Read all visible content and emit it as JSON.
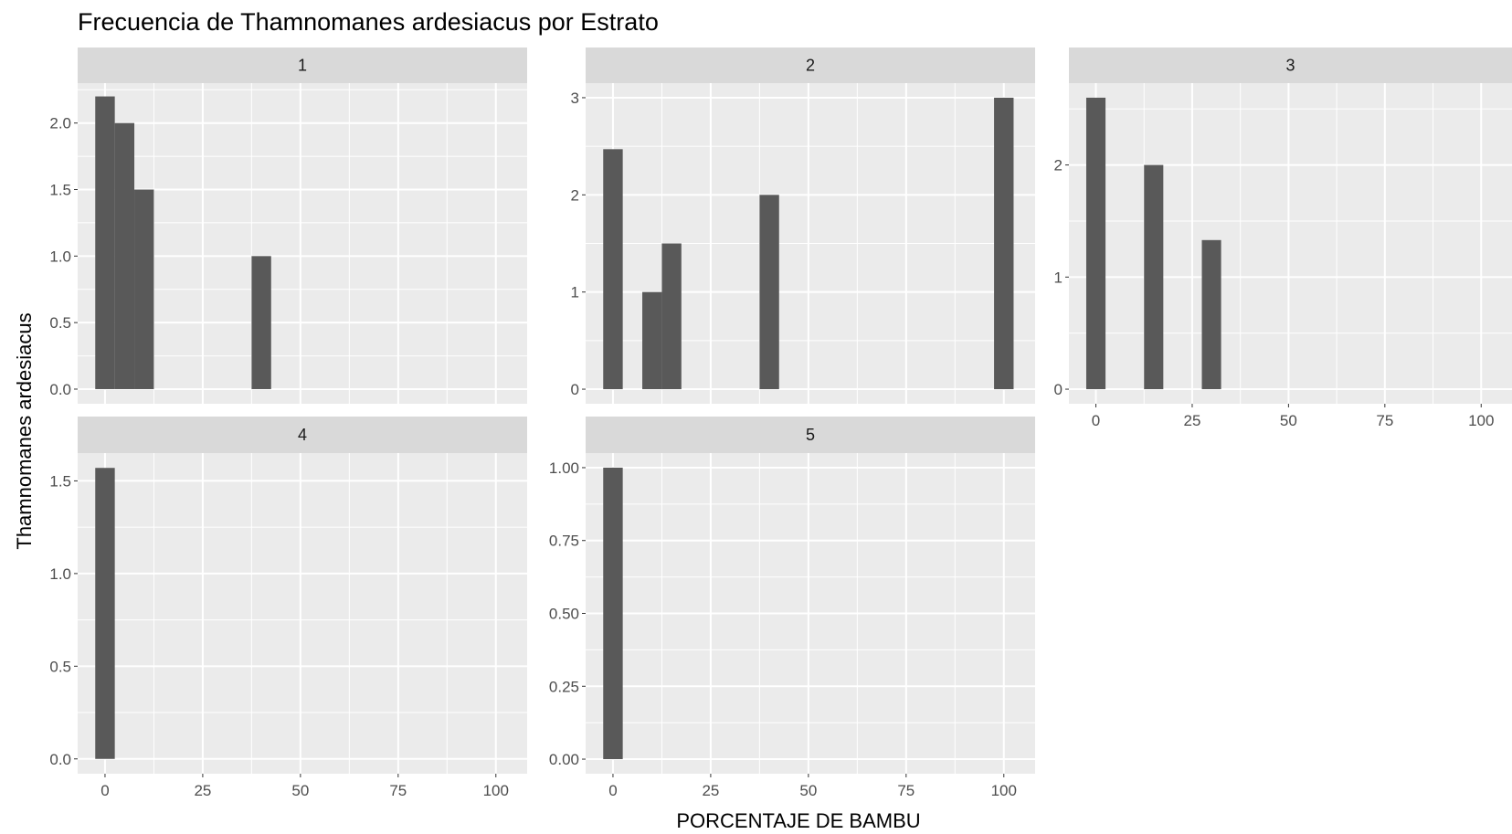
{
  "chart_data": {
    "type": "bar",
    "title": "Frecuencia de Thamnomanes ardesiacus por Estrato",
    "xlabel": "PORCENTAJE DE BAMBU",
    "ylabel": "Thamnomanes ardesiacus",
    "xlim": [
      -7,
      108
    ],
    "x_ticks": [
      0,
      25,
      50,
      75,
      100
    ],
    "x_tick_labels": [
      "0",
      "25",
      "50",
      "75",
      "100"
    ],
    "bar_width": 5,
    "bar_color": "#595959",
    "panel_background": "#ebebeb",
    "strip_background": "#d9d9d9",
    "grid": true,
    "panels": [
      {
        "strip": "1",
        "ylim": [
          -0.11,
          2.3
        ],
        "y_ticks": [
          0,
          0.5,
          1,
          1.5,
          2
        ],
        "y_tick_labels": [
          "0.0",
          "0.5",
          "1.0",
          "1.5",
          "2.0"
        ],
        "bars": [
          {
            "x": 0,
            "y": 2.2
          },
          {
            "x": 5,
            "y": 2.0
          },
          {
            "x": 10,
            "y": 1.5
          },
          {
            "x": 40,
            "y": 1.0
          }
        ]
      },
      {
        "strip": "2",
        "ylim": [
          -0.15,
          3.15
        ],
        "y_ticks": [
          0,
          1,
          2,
          3
        ],
        "y_tick_labels": [
          "0",
          "1",
          "2",
          "3"
        ],
        "bars": [
          {
            "x": 0,
            "y": 2.47
          },
          {
            "x": 10,
            "y": 1.0
          },
          {
            "x": 15,
            "y": 1.5
          },
          {
            "x": 40,
            "y": 2.0
          },
          {
            "x": 100,
            "y": 3.0
          }
        ]
      },
      {
        "strip": "3",
        "ylim": [
          -0.13,
          2.73
        ],
        "y_ticks": [
          0,
          1,
          2
        ],
        "y_tick_labels": [
          "0",
          "1",
          "2"
        ],
        "bars": [
          {
            "x": 0,
            "y": 2.6
          },
          {
            "x": 15,
            "y": 2.0
          },
          {
            "x": 30,
            "y": 1.33
          }
        ]
      },
      {
        "strip": "4",
        "ylim": [
          -0.08,
          1.65
        ],
        "y_ticks": [
          0,
          0.5,
          1,
          1.5
        ],
        "y_tick_labels": [
          "0.0",
          "0.5",
          "1.0",
          "1.5"
        ],
        "bars": [
          {
            "x": 0,
            "y": 1.57
          }
        ]
      },
      {
        "strip": "5",
        "ylim": [
          -0.05,
          1.05
        ],
        "y_ticks": [
          0,
          0.25,
          0.5,
          0.75,
          1
        ],
        "y_tick_labels": [
          "0.00",
          "0.25",
          "0.50",
          "0.75",
          "1.00"
        ],
        "bars": [
          {
            "x": 0,
            "y": 1.0
          }
        ]
      }
    ]
  }
}
